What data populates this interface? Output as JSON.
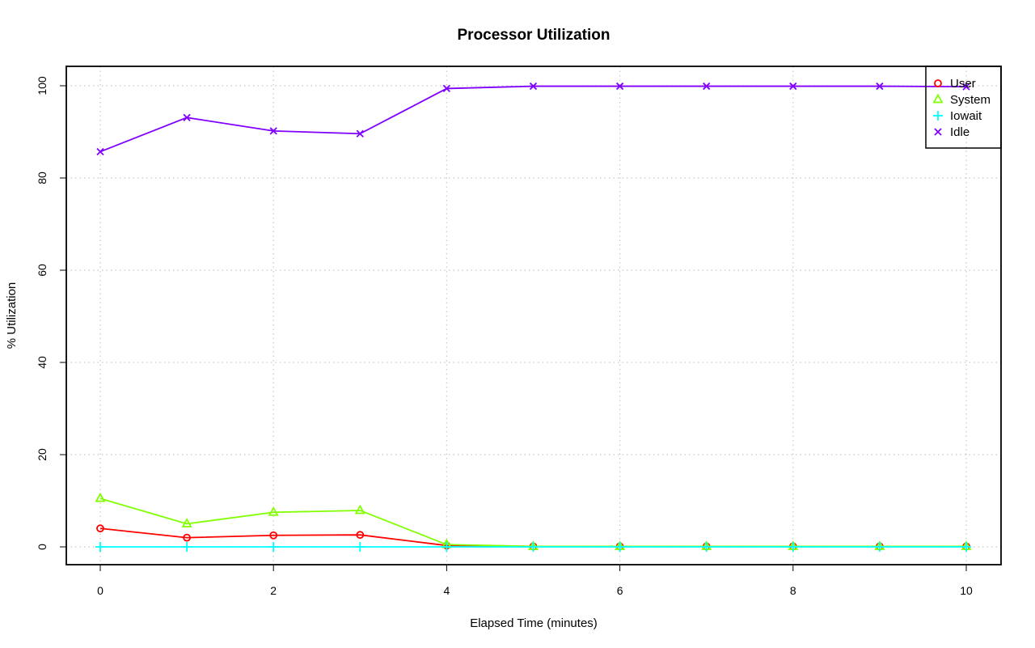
{
  "chart_data": {
    "type": "line",
    "title": "Processor Utilization",
    "xlabel": "Elapsed Time (minutes)",
    "ylabel": "% Utilization",
    "xlim": [
      0,
      10
    ],
    "ylim": [
      0,
      100
    ],
    "grid": true,
    "legend_position": "top-right",
    "x_ticks": [
      "0",
      "2",
      "4",
      "6",
      "8",
      "10"
    ],
    "y_ticks": [
      "0",
      "20",
      "40",
      "60",
      "80",
      "100"
    ],
    "x": [
      0,
      1,
      2,
      3,
      4,
      5,
      6,
      7,
      8,
      9,
      10
    ],
    "series": [
      {
        "name": "User",
        "color": "#ff0000",
        "marker": "circle",
        "values": [
          4.0,
          2.0,
          2.5,
          2.6,
          0.3,
          0.1,
          0.1,
          0.1,
          0.1,
          0.1,
          0.1
        ]
      },
      {
        "name": "System",
        "color": "#80ff00",
        "marker": "triangle",
        "values": [
          10.5,
          5.0,
          7.5,
          7.9,
          0.5,
          0.1,
          0.1,
          0.1,
          0.1,
          0.1,
          0.1
        ]
      },
      {
        "name": "Iowait",
        "color": "#00ffff",
        "marker": "plus",
        "values": [
          0,
          0,
          0,
          0,
          0,
          0,
          0,
          0,
          0,
          0,
          0
        ]
      },
      {
        "name": "Idle",
        "color": "#8000ff",
        "marker": "cross",
        "values": [
          85.7,
          93.1,
          90.2,
          89.6,
          99.4,
          99.9,
          99.9,
          99.9,
          99.9,
          99.9,
          99.8
        ]
      }
    ]
  }
}
